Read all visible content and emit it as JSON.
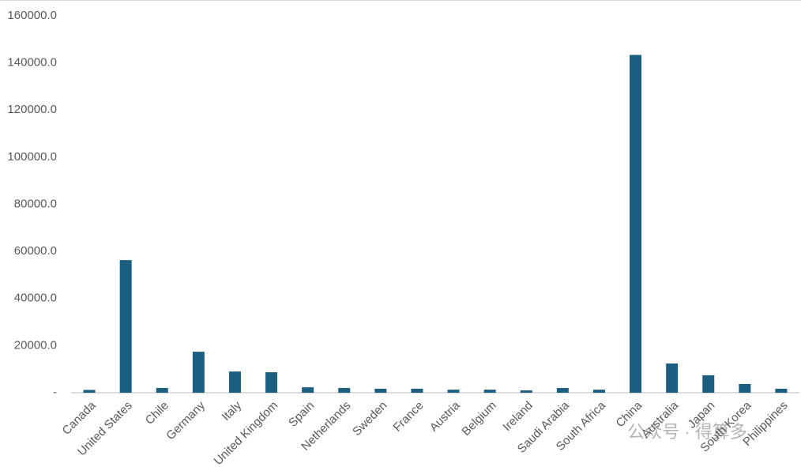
{
  "chart_data": {
    "type": "bar",
    "categories": [
      "Canada",
      "United States",
      "Chile",
      "Germany",
      "Italy",
      "United Kingdom",
      "Spain",
      "Netherlands",
      "Sweden",
      "France",
      "Austria",
      "Belgium",
      "Ireland",
      "Saudi Arabia",
      "South Africa",
      "China",
      "Australia",
      "Japan",
      "South Korea",
      "Philippines"
    ],
    "values": [
      1200,
      56300,
      2000,
      17400,
      9000,
      8700,
      2300,
      2000,
      1700,
      1700,
      1300,
      1300,
      1000,
      2000,
      1300,
      143400,
      12400,
      7400,
      3700,
      1700
    ],
    "color": "#1b5e80",
    "ylim": [
      0,
      160000
    ],
    "yticks": [
      {
        "value": 0,
        "label": "-"
      },
      {
        "value": 20000,
        "label": "20000.0"
      },
      {
        "value": 40000,
        "label": "40000.0"
      },
      {
        "value": 60000,
        "label": "60000.0"
      },
      {
        "value": 80000,
        "label": "80000.0"
      },
      {
        "value": 100000,
        "label": "100000.0"
      },
      {
        "value": 120000,
        "label": "120000.0"
      },
      {
        "value": 140000,
        "label": "140000.0"
      },
      {
        "value": 160000,
        "label": "160000.0"
      }
    ],
    "grid": false,
    "watermark": "公众号 · 得算多"
  }
}
